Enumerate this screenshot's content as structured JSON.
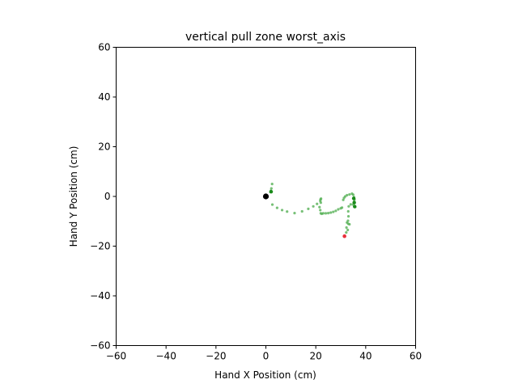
{
  "chart_data": {
    "type": "scatter",
    "title": "vertical pull zone worst_axis",
    "xlabel": "Hand X Position (cm)",
    "ylabel": "Hand Y Position (cm)",
    "xlim": [
      -60,
      60
    ],
    "ylim": [
      -60,
      60
    ],
    "xticks": [
      "−60",
      "−40",
      "−20",
      "0",
      "20",
      "40",
      "60"
    ],
    "yticks": [
      "−60",
      "−40",
      "−20",
      "0",
      "20",
      "40",
      "60"
    ],
    "grid": false,
    "colors": {
      "trajectory": "#55b055",
      "trajectory_dark": "#1a8a1a",
      "start": "#000000",
      "end": "#e8303a"
    },
    "series": [
      {
        "role": "trajectory",
        "points": [
          [
            2.5,
            5.0
          ],
          [
            2.2,
            3.2
          ],
          [
            2.0,
            2.3
          ],
          [
            1.8,
            1.8
          ],
          [
            2.3,
            1.9
          ],
          [
            2.6,
            -3.3
          ],
          [
            4.5,
            -4.6
          ],
          [
            6.5,
            -5.5
          ],
          [
            8.5,
            -6.1
          ],
          [
            11.5,
            -6.7
          ],
          [
            14.5,
            -6.0
          ],
          [
            17.0,
            -5.0
          ],
          [
            19.0,
            -4.0
          ],
          [
            20.5,
            -3.0
          ],
          [
            21.5,
            -4.3
          ],
          [
            21.8,
            -5.5
          ],
          [
            22.0,
            -6.8
          ],
          [
            22.4,
            -7.0
          ],
          [
            23.0,
            -6.8
          ],
          [
            24.0,
            -6.8
          ],
          [
            25.0,
            -6.7
          ],
          [
            26.0,
            -6.5
          ],
          [
            27.0,
            -6.2
          ],
          [
            28.0,
            -5.8
          ],
          [
            29.0,
            -5.2
          ],
          [
            30.0,
            -4.8
          ],
          [
            30.5,
            -4.5
          ],
          [
            21.8,
            -1.8
          ],
          [
            21.9,
            -1.2
          ],
          [
            22.0,
            -2.5
          ],
          [
            22.1,
            -0.9
          ],
          [
            31.0,
            -1.4
          ],
          [
            31.3,
            -0.6
          ],
          [
            31.8,
            0.0
          ],
          [
            32.5,
            0.5
          ],
          [
            33.5,
            0.8
          ],
          [
            34.5,
            1.1
          ],
          [
            35.0,
            0.7
          ],
          [
            35.3,
            -0.3
          ],
          [
            35.5,
            -1.2
          ],
          [
            35.4,
            -2.0
          ],
          [
            35.0,
            -3.3
          ],
          [
            35.5,
            -4.0
          ],
          [
            35.8,
            -4.2
          ],
          [
            34.0,
            -3.2
          ],
          [
            33.2,
            -4.0
          ],
          [
            33.0,
            -6.0
          ],
          [
            33.1,
            -8.0
          ],
          [
            32.9,
            -9.8
          ],
          [
            33.0,
            -11.0
          ],
          [
            32.5,
            -10.5
          ],
          [
            33.5,
            -11.2
          ],
          [
            32.3,
            -12.5
          ],
          [
            32.8,
            -13.5
          ],
          [
            32.2,
            -14.5
          ]
        ]
      },
      {
        "role": "trajectory_dark",
        "points": [
          [
            2.1,
            1.9
          ],
          [
            35.2,
            -0.8
          ],
          [
            35.4,
            -2.5
          ],
          [
            35.6,
            -4.1
          ]
        ]
      }
    ],
    "start_point": [
      0,
      0
    ],
    "end_point": [
      31.5,
      -16.0
    ]
  }
}
